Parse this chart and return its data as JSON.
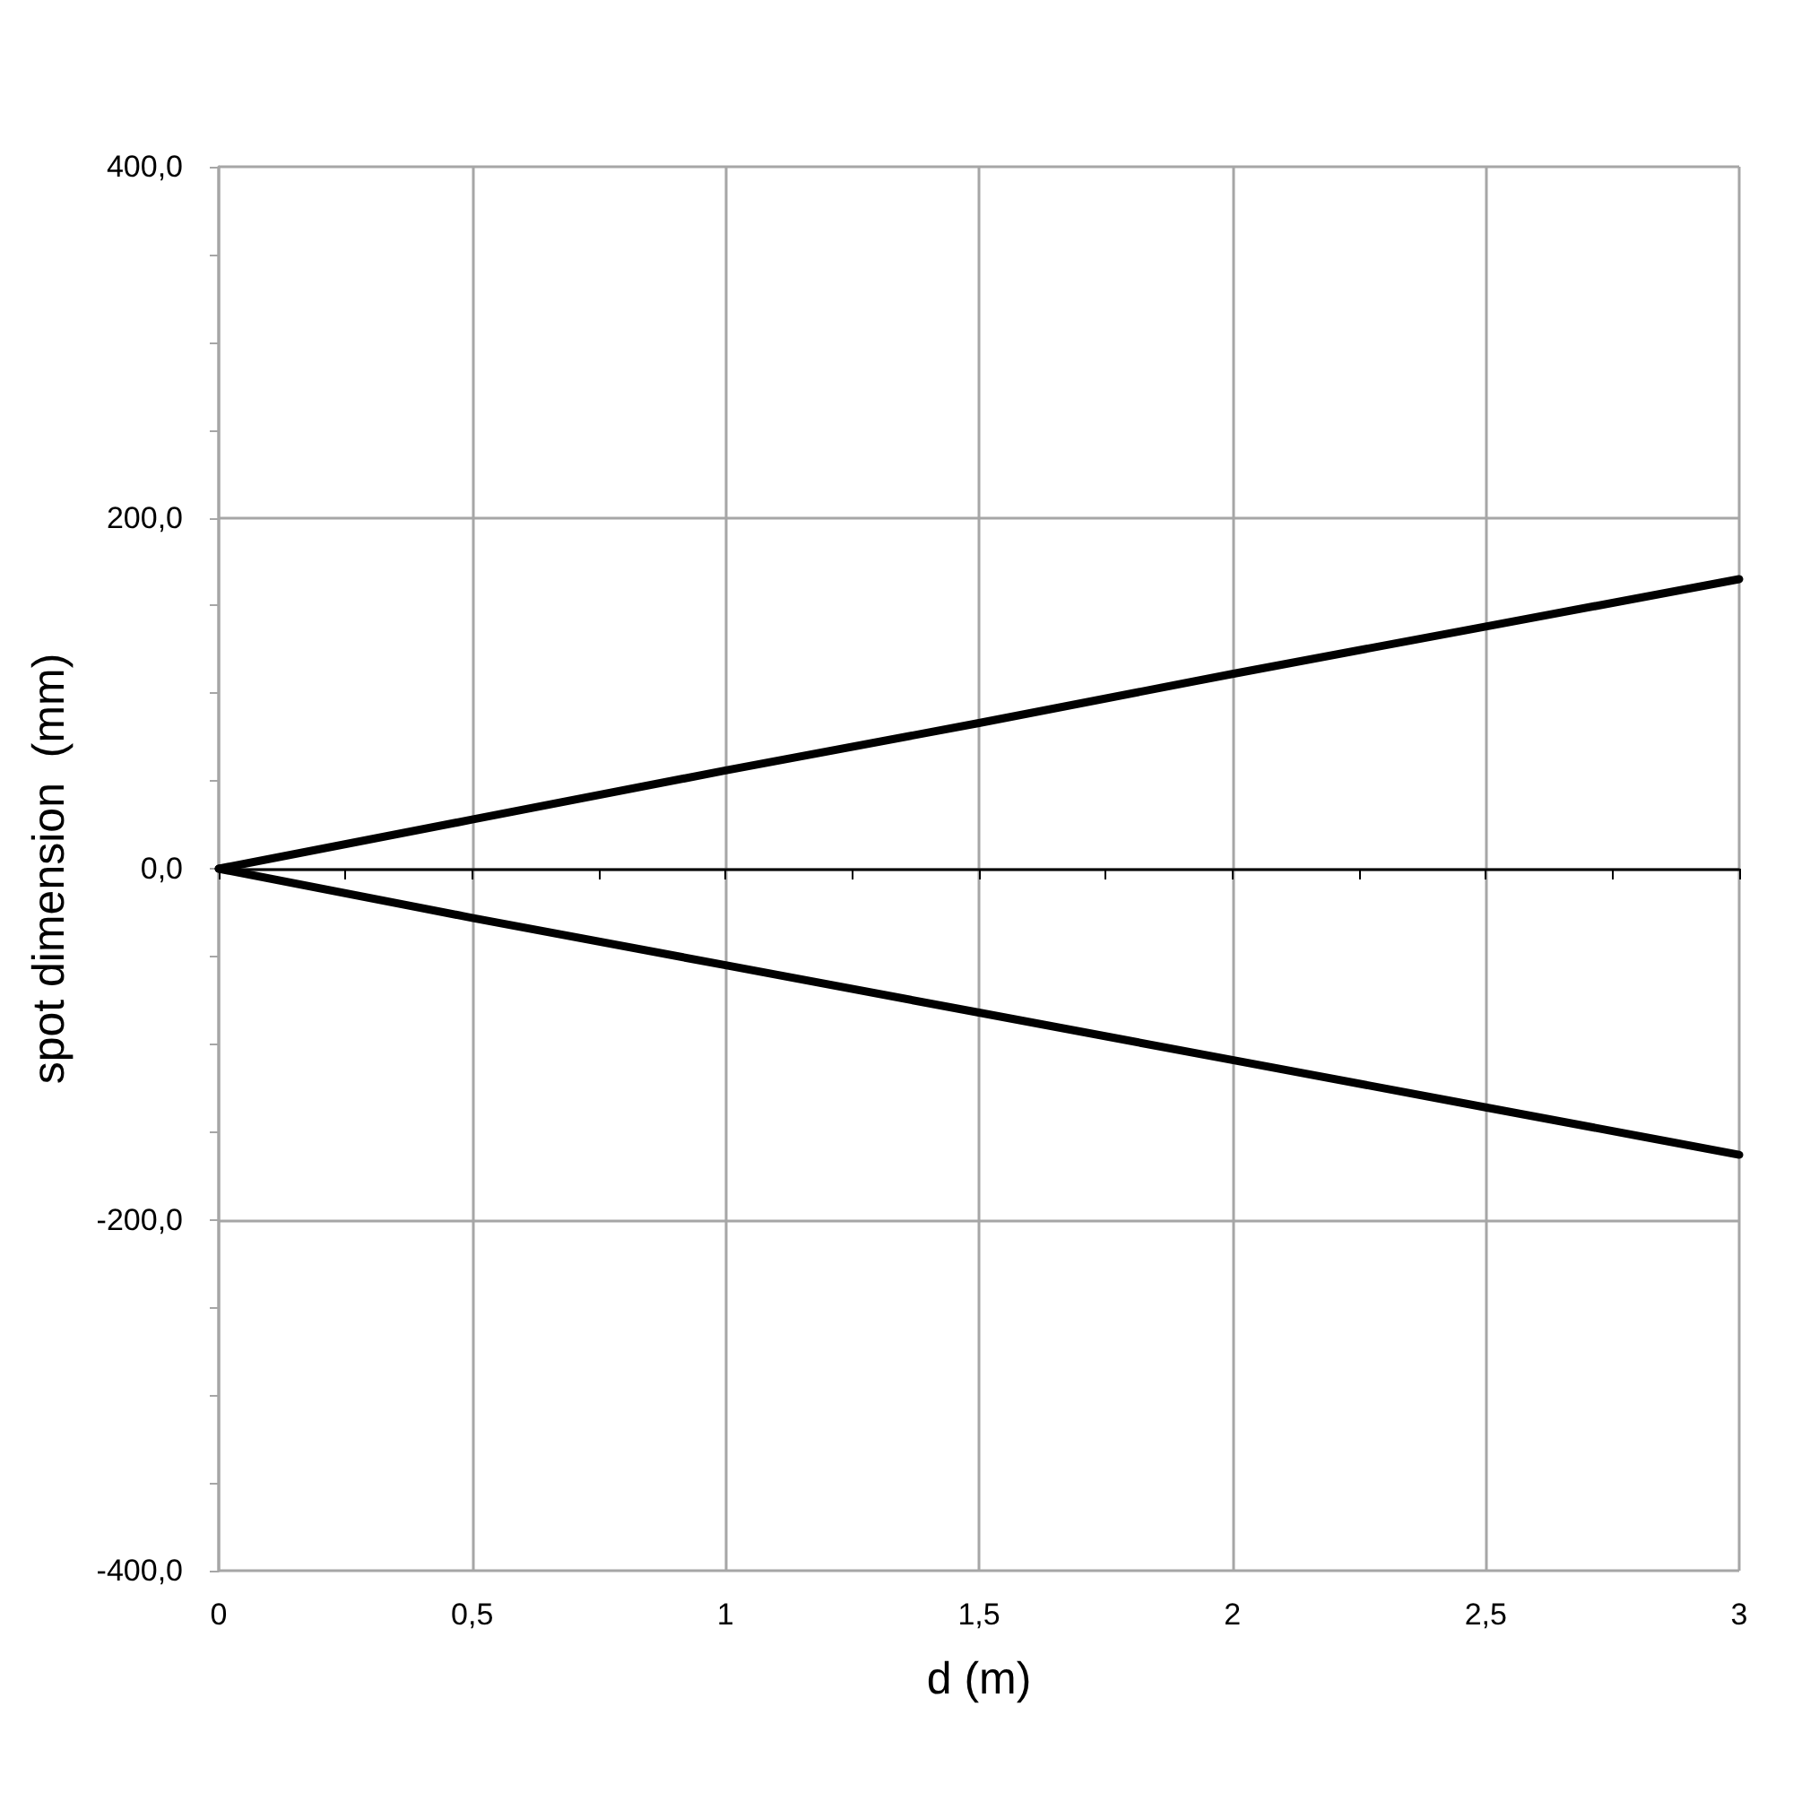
{
  "chart_data": {
    "type": "line",
    "xlabel": "d (m)",
    "ylabel": "spot dimension  (mm)",
    "x": [
      0,
      0.5,
      1,
      1.5,
      2,
      2.5,
      3
    ],
    "series": [
      {
        "color": "#000000",
        "values": [
          0,
          28,
          56,
          83,
          111,
          138,
          165
        ]
      },
      {
        "color": "#000000",
        "values": [
          0,
          -28,
          -55,
          -82,
          -109,
          -136,
          -163
        ]
      }
    ],
    "xlim": [
      0,
      3
    ],
    "xticks": [
      0,
      {
        "value": 0.25,
        "label": null
      },
      {
        "value": 0.5,
        "label": "0,5"
      },
      {
        "value": 0.75,
        "label": null
      },
      1,
      {
        "value": 1.25,
        "label": null
      },
      {
        "value": 1.5,
        "label": "1,5"
      },
      {
        "value": 1.75,
        "label": null
      },
      2,
      {
        "value": 2.25,
        "label": null
      },
      {
        "value": 2.5,
        "label": "2,5"
      },
      {
        "value": 2.75,
        "label": null
      },
      3
    ],
    "ylim": [
      -400,
      400
    ],
    "yticks": [
      {
        "value": -400,
        "label": "-400,0"
      },
      {
        "value": -350,
        "label": null
      },
      {
        "value": -300,
        "label": null
      },
      {
        "value": -250,
        "label": null
      },
      {
        "value": -200,
        "label": "-200,0"
      },
      {
        "value": -150,
        "label": null
      },
      {
        "value": -100,
        "label": null
      },
      {
        "value": -50,
        "label": null
      },
      {
        "value": 0,
        "label": "0,0"
      },
      {
        "value": 50,
        "label": null
      },
      {
        "value": 100,
        "label": null
      },
      {
        "value": 150,
        "label": null
      },
      {
        "value": 200,
        "label": "200,0"
      },
      {
        "value": 250,
        "label": null
      },
      {
        "value": 300,
        "label": null
      },
      {
        "value": 350,
        "label": null
      },
      {
        "value": 400,
        "label": "400,0"
      }
    ],
    "grid": true,
    "marker": "none",
    "line_style": "solid"
  }
}
